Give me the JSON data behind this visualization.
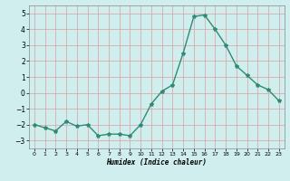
{
  "x": [
    0,
    1,
    2,
    3,
    4,
    5,
    6,
    7,
    8,
    9,
    10,
    11,
    12,
    13,
    14,
    15,
    16,
    17,
    18,
    19,
    20,
    21,
    22,
    23
  ],
  "y": [
    -2.0,
    -2.2,
    -2.4,
    -1.8,
    -2.1,
    -2.0,
    -2.7,
    -2.6,
    -2.6,
    -2.7,
    -2.0,
    -0.7,
    0.1,
    0.5,
    2.5,
    4.8,
    4.9,
    4.0,
    3.0,
    1.7,
    1.1,
    0.5,
    0.2,
    -0.5
  ],
  "line_color": "#2e8b74",
  "bg_color": "#d0eeee",
  "grid_color": "#b8d8d8",
  "xlabel": "Humidex (Indice chaleur)",
  "ylim": [
    -3.5,
    5.5
  ],
  "xlim": [
    -0.5,
    23.5
  ],
  "yticks": [
    -3,
    -2,
    -1,
    0,
    1,
    2,
    3,
    4,
    5
  ],
  "xticks": [
    0,
    1,
    2,
    3,
    4,
    5,
    6,
    7,
    8,
    9,
    10,
    11,
    12,
    13,
    14,
    15,
    16,
    17,
    18,
    19,
    20,
    21,
    22,
    23
  ],
  "markersize": 3,
  "linewidth": 1.0
}
